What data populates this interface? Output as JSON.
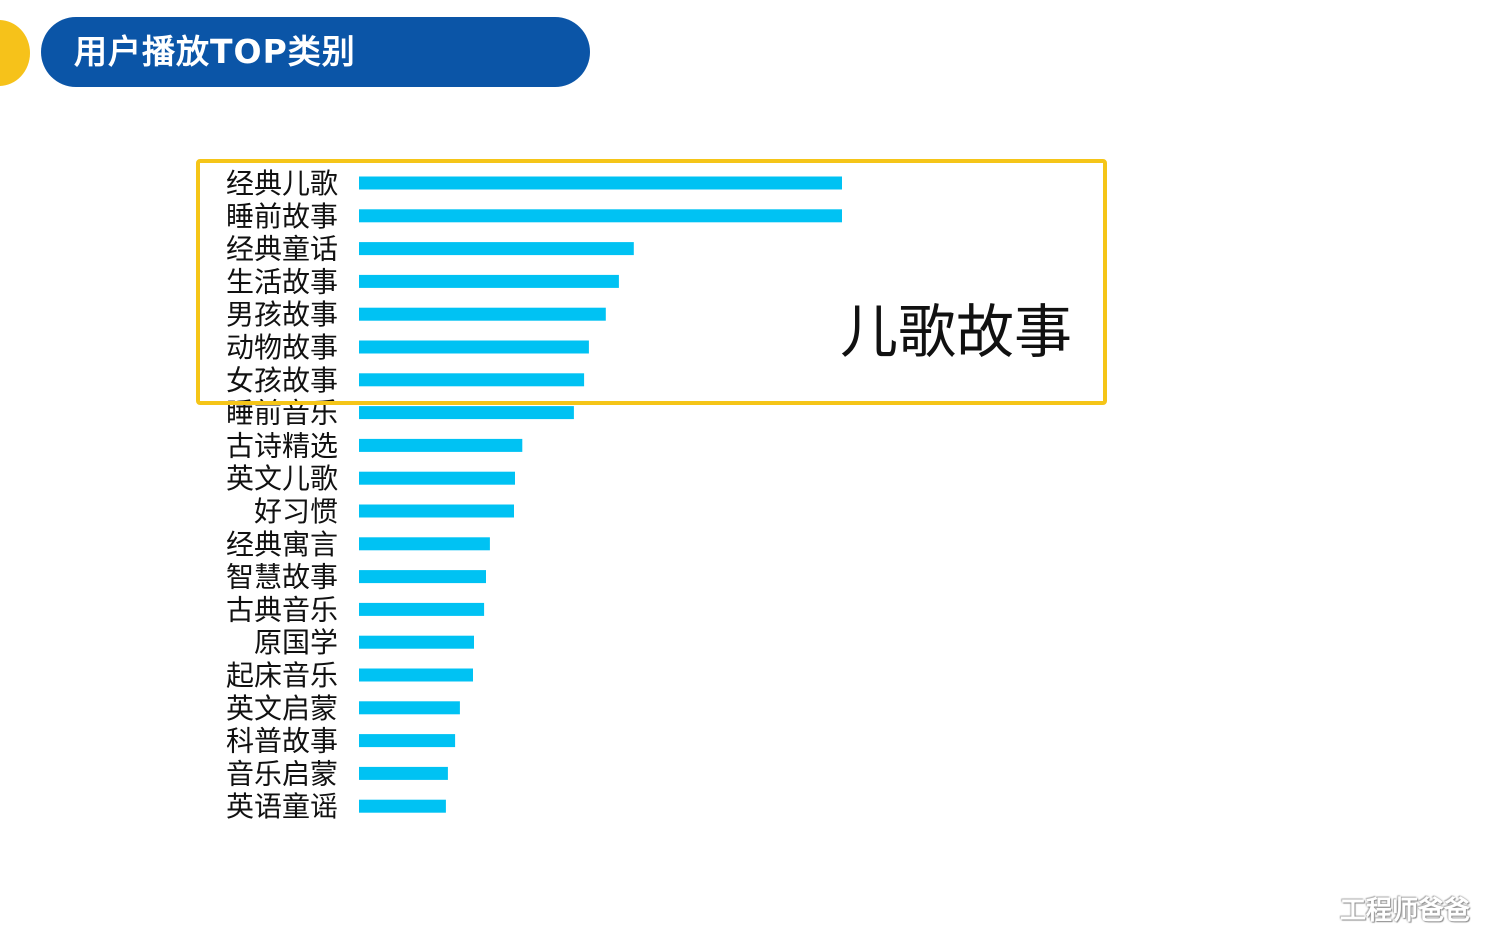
{
  "header": {
    "title": "用户播放TOP类别"
  },
  "highlight": {
    "label": "儿歌故事"
  },
  "watermark": {
    "text": "工程师爸爸"
  },
  "colors": {
    "bar": "#00c2f3",
    "header_bg": "#0b55a7",
    "accent": "#f6c21a",
    "highlight_border": "#f5c518"
  },
  "chart_data": {
    "type": "bar",
    "orientation": "horizontal",
    "title": "",
    "xlabel": "",
    "ylabel": "",
    "grid": false,
    "categories": [
      "经典儿歌",
      "睡前故事",
      "经典童话",
      "生活故事",
      "男孩故事",
      "动物故事",
      "女孩故事",
      "睡前音乐",
      "古诗精选",
      "英文儿歌",
      "好习惯",
      "经典寓言",
      "智慧故事",
      "古典音乐",
      "原国学",
      "起床音乐",
      "英文启蒙",
      "科普故事",
      "音乐启蒙",
      "英语童谣"
    ],
    "values": [
      100,
      100,
      56.9,
      53.8,
      51.1,
      47.6,
      46.6,
      44.5,
      33.8,
      32.3,
      32.1,
      27.1,
      26.3,
      25.9,
      23.8,
      23.6,
      20.9,
      19.9,
      18.4,
      18.0
    ],
    "xlim": [
      0,
      100
    ]
  }
}
